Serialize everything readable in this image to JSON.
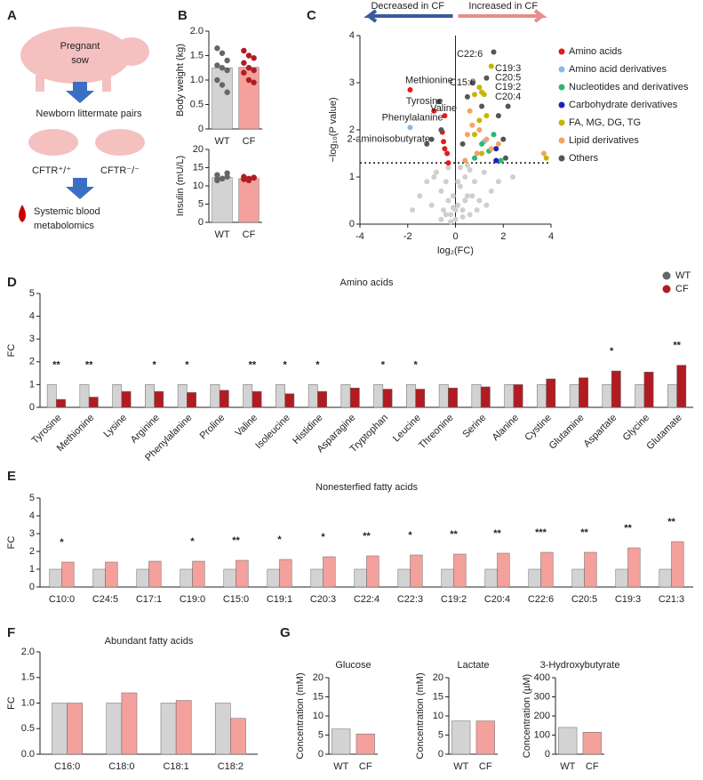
{
  "diagram": {
    "panel": "A",
    "sow": [
      "Pregnant",
      "sow"
    ],
    "pairs": "Newborn littermate pairs",
    "wt": "CFTR⁺/⁺",
    "cf": "CFTR⁻/⁻",
    "outcome": [
      "Systemic blood",
      "metabolomics"
    ]
  },
  "chart_data": [
    {
      "type": "bar",
      "panel": "B",
      "ylabel": "Body weight (kg)",
      "categories": [
        "WT",
        "CF"
      ],
      "colors": [
        "#d3d3d3",
        "#f4a09c"
      ],
      "values": [
        1.25,
        1.26
      ],
      "points": [
        [
          1.65,
          1.55,
          1.4,
          1.3,
          1.25,
          1.2,
          1.0,
          0.9,
          0.75
        ],
        [
          1.6,
          1.5,
          1.45,
          1.35,
          1.25,
          1.2,
          1.15,
          1.0,
          0.95
        ]
      ],
      "ylim": [
        0,
        2
      ],
      "yticks": [
        0,
        0.5,
        {
          "value": 1,
          "label": "1.0"
        },
        1.5,
        {
          "value": 2,
          "label": "2.0"
        }
      ]
    },
    {
      "type": "bar",
      "ylabel": "Insulin (mU/L)",
      "categories": [
        "WT",
        "CF"
      ],
      "colors": [
        "#d3d3d3",
        "#f4a09c"
      ],
      "values": [
        12.3,
        12.0
      ],
      "points": [
        [
          11.5,
          12,
          12.5,
          13,
          12,
          13.5,
          11.8
        ],
        [
          11.8,
          12,
          12.2,
          12.5,
          11.5,
          12.3,
          12
        ]
      ],
      "ylim": [
        0,
        20
      ],
      "yticks": [
        0,
        5,
        10,
        15,
        20
      ]
    },
    {
      "type": "scatter",
      "panel": "C",
      "xlabel": "log₂(FC)",
      "ylabel": "−log₁₀(P value)",
      "left_label": "Decreased in CF",
      "right_label": "Increased in CF",
      "xlim": [
        -4,
        4
      ],
      "xticks": [
        -4,
        -2,
        0,
        2,
        4
      ],
      "ylim": [
        0,
        4
      ],
      "yticks": [
        0,
        1,
        2,
        3,
        4
      ],
      "threshold": 1.3,
      "series": [
        {
          "color": "#cfcfcf",
          "x": [
            -1.5,
            -1.2,
            -1,
            -0.8,
            -0.6,
            -0.5,
            -0.4,
            -0.3,
            -0.2,
            -0.1,
            0,
            0.1,
            0.2,
            0.3,
            0.4,
            0.5,
            0.6,
            0.8,
            1,
            1.2,
            1.5,
            -0.3,
            0.2,
            0.5,
            -0.6,
            0.9,
            -0.9,
            1.3,
            -0.2,
            0.1,
            0.3,
            -0.4,
            0.7,
            1.8,
            2.4,
            -1.8,
            0.4,
            0,
            -0.1,
            0.6
          ],
          "y": [
            0.6,
            0.9,
            0.4,
            1.1,
            0.7,
            0.3,
            0.9,
            0.5,
            0.2,
            0.6,
            0.1,
            0.4,
            0.8,
            0.3,
            1.0,
            0.6,
            0.2,
            0.9,
            0.5,
            1.1,
            0.7,
            1.2,
            1.2,
            1.25,
            0.1,
            0.3,
            1.0,
            0.4,
            0.05,
            0.9,
            0.15,
            0.2,
            0.6,
            0.9,
            1.0,
            0.3,
            0.5,
            0.3,
            0.35,
            1.15
          ]
        },
        {
          "name": "Amino acids",
          "color": "#e41a1c",
          "x": [
            -1.9,
            -0.9,
            -0.45,
            -0.55,
            -0.5,
            -0.45,
            -0.35,
            -0.3
          ],
          "y": [
            2.85,
            2.4,
            2.3,
            1.95,
            1.75,
            1.6,
            1.5,
            1.3
          ]
        },
        {
          "name": "Amino acid derivatives",
          "color": "#8ab8e6",
          "x": [
            -1.9,
            1.2,
            0.9
          ],
          "y": [
            2.05,
            1.75,
            1.5
          ]
        },
        {
          "name": "Nucleotides and derivatives",
          "color": "#2bb673",
          "x": [
            1.1,
            1.4,
            0.8,
            1.6,
            1.9
          ],
          "y": [
            1.7,
            1.55,
            1.4,
            1.9,
            1.35
          ]
        },
        {
          "name": "Carbohydrate derivatives",
          "color": "#1f1fbf",
          "x": [
            1.7,
            1.7
          ],
          "y": [
            1.6,
            1.35
          ]
        },
        {
          "name": "FA, MG, DG, TG",
          "color": "#c8b400",
          "x": [
            1.5,
            1.0,
            1.1,
            1.2,
            0.8,
            1.0,
            1.3,
            0.8,
            1.1,
            3.8
          ],
          "y": [
            3.35,
            2.9,
            2.8,
            2.75,
            2.75,
            2.2,
            2.3,
            1.9,
            1.5,
            1.4
          ]
        },
        {
          "name": "Lipid derivatives",
          "color": "#f4a460",
          "x": [
            0.6,
            0.5,
            1.0,
            1.3,
            1.5,
            0.9,
            3.7,
            0.4,
            1.8,
            0.7
          ],
          "y": [
            2.4,
            1.9,
            2.0,
            1.8,
            1.6,
            1.5,
            1.5,
            1.35,
            1.7,
            2.1
          ]
        },
        {
          "name": "Others",
          "color": "#555555",
          "x": [
            1.6,
            -0.7,
            -1.0,
            -0.6,
            0.7,
            1.3,
            2.2,
            2.0,
            1.8,
            1.1,
            0.3,
            -1.2,
            0.5,
            2.1
          ],
          "y": [
            3.65,
            2.6,
            1.8,
            2.0,
            3.0,
            3.1,
            2.5,
            1.8,
            2.3,
            2.5,
            1.7,
            1.7,
            2.7,
            1.4
          ]
        }
      ],
      "annotations": [
        {
          "text": "Methionine",
          "x": -1.1,
          "y": 3.05
        },
        {
          "text": "Tyrosine",
          "x": -1.3,
          "y": 2.6
        },
        {
          "text": "Phenylalanine",
          "x": -1.8,
          "y": 2.25
        },
        {
          "text": "Valine",
          "x": -0.5,
          "y": 2.45
        },
        {
          "text": "2-aminoisobutyrate",
          "x": -2.8,
          "y": 1.8
        },
        {
          "text": "C22:6",
          "x": 0.6,
          "y": 3.6
        },
        {
          "text": "C15:0",
          "x": 0.3,
          "y": 3.0
        },
        {
          "text": "C19:3",
          "x": 2.2,
          "y": 3.3
        },
        {
          "text": "C20:5",
          "x": 2.2,
          "y": 3.1
        },
        {
          "text": "C19:2",
          "x": 2.2,
          "y": 2.9
        },
        {
          "text": "C20:4",
          "x": 2.2,
          "y": 2.7
        }
      ]
    },
    {
      "type": "bar",
      "panel": "D",
      "title": "Amino acids",
      "ylabel": "FC",
      "rotate": true,
      "categories": [
        "Tyrosine",
        "Methionine",
        "Lysine",
        "Arginine",
        "Phenylalanine",
        "Proline",
        "Valine",
        "Isoleucine",
        "Histidine",
        "Asparagine",
        "Tryptophan",
        "Leucine",
        "Threonine",
        "Serine",
        "Alanine",
        "Cystine",
        "Glutamine",
        "Aspartate",
        "Glycine",
        "Glutamate"
      ],
      "series": [
        {
          "name": "WT",
          "color": "#d3d3d3",
          "values": [
            1,
            1,
            1,
            1,
            1,
            1,
            1,
            1,
            1,
            1,
            1,
            1,
            1,
            1,
            1,
            1,
            1,
            1,
            1,
            1
          ]
        },
        {
          "name": "CF",
          "color": "#b01c22",
          "values": [
            0.35,
            0.45,
            0.7,
            0.7,
            0.65,
            0.75,
            0.7,
            0.6,
            0.7,
            0.85,
            0.8,
            0.8,
            0.85,
            0.9,
            1.0,
            1.25,
            1.3,
            1.6,
            1.55,
            1.85
          ]
        }
      ],
      "significance": [
        "**",
        "**",
        null,
        "*",
        "*",
        null,
        "**",
        "*",
        "*",
        null,
        "*",
        "*",
        null,
        null,
        null,
        null,
        null,
        "*",
        null,
        "**"
      ],
      "ylim": [
        0,
        5
      ],
      "yticks": [
        0,
        1,
        2,
        3,
        4,
        5
      ]
    },
    {
      "type": "bar",
      "panel": "E",
      "title": "Nonesterfied fatty acids",
      "ylabel": "FC",
      "categories": [
        "C10:0",
        "C24:5",
        "C17:1",
        "C19:0",
        "C15:0",
        "C19:1",
        "C20:3",
        "C22:4",
        "C22:3",
        "C19:2",
        "C20:4",
        "C22:6",
        "C20:5",
        "C19:3",
        "C21:3"
      ],
      "series": [
        {
          "name": "WT",
          "color": "#d3d3d3",
          "values": [
            1,
            1,
            1,
            1,
            1,
            1,
            1,
            1,
            1,
            1,
            1,
            1,
            1,
            1,
            1
          ]
        },
        {
          "name": "CF",
          "color": "#f4a09c",
          "values": [
            1.4,
            1.4,
            1.45,
            1.45,
            1.5,
            1.55,
            1.7,
            1.75,
            1.8,
            1.85,
            1.9,
            1.95,
            1.95,
            2.2,
            2.55
          ]
        }
      ],
      "significance": [
        "*",
        null,
        null,
        "*",
        "**",
        "*",
        "*",
        "**",
        "*",
        "**",
        "**",
        "***",
        "**",
        "**",
        "**"
      ],
      "ylim": [
        0,
        5
      ],
      "yticks": [
        0,
        1,
        2,
        3,
        4,
        5
      ]
    },
    {
      "type": "bar",
      "panel": "F",
      "title": "Abundant fatty acids",
      "ylabel": "FC",
      "categories": [
        "C16:0",
        "C18:0",
        "C18:1",
        "C18:2"
      ],
      "series": [
        {
          "name": "WT",
          "color": "#d3d3d3",
          "values": [
            1,
            1,
            1,
            1
          ]
        },
        {
          "name": "CF",
          "color": "#f4a09c",
          "values": [
            1.0,
            1.2,
            1.05,
            0.7
          ]
        }
      ],
      "ylim": [
        0,
        2
      ],
      "yticks": [
        {
          "value": 0,
          "label": "0.0"
        },
        0.5,
        {
          "value": 1,
          "label": "1.0"
        },
        1.5,
        {
          "value": 2,
          "label": "2.0"
        }
      ]
    },
    {
      "type": "bar",
      "panel": "G",
      "title": "Glucose",
      "ylabel": "Concentration (mM)",
      "categories": [
        "WT",
        "CF"
      ],
      "colors": [
        "#d3d3d3",
        "#f4a09c"
      ],
      "values": [
        6.6,
        5.3
      ],
      "ylim": [
        0,
        20
      ],
      "yticks": [
        0,
        5,
        10,
        15,
        20
      ]
    },
    {
      "type": "bar",
      "title": "Lactate",
      "ylabel": "Concentration (mM)",
      "categories": [
        "WT",
        "CF"
      ],
      "colors": [
        "#d3d3d3",
        "#f4a09c"
      ],
      "values": [
        8.7,
        8.7
      ],
      "ylim": [
        0,
        20
      ],
      "yticks": [
        0,
        5,
        10,
        15,
        20
      ]
    },
    {
      "type": "bar",
      "title": "3-Hydroxybutyrate",
      "ylabel": "Concentration (µM)",
      "categories": [
        "WT",
        "CF"
      ],
      "colors": [
        "#d3d3d3",
        "#f4a09c"
      ],
      "values": [
        140,
        115
      ],
      "ylim": [
        0,
        400
      ],
      "yticks": [
        0,
        100,
        200,
        300,
        400
      ]
    }
  ]
}
